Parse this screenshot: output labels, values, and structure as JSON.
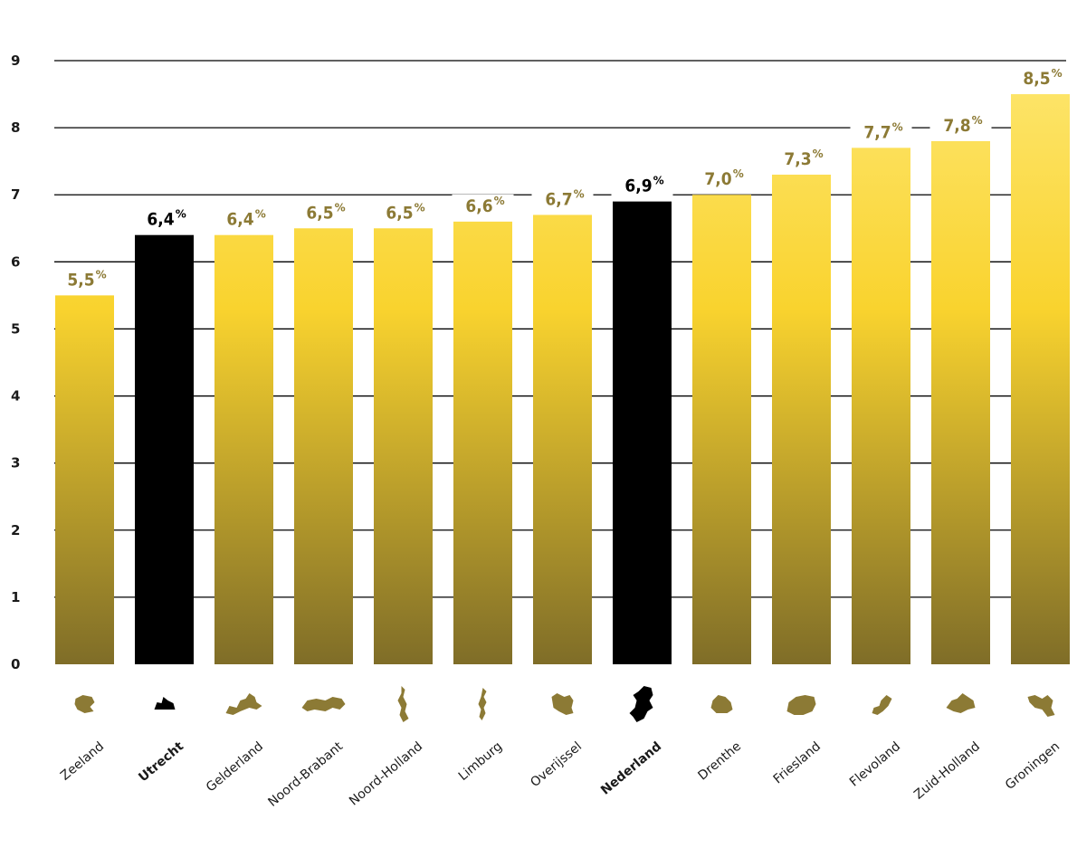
{
  "chart_data": {
    "type": "bar",
    "title": "",
    "xlabel": "",
    "ylabel": "",
    "ylim": [
      0,
      9
    ],
    "yticks": [
      "0",
      "1",
      "2",
      "3",
      "4",
      "5",
      "6",
      "7",
      "8",
      "9"
    ],
    "grid": true,
    "value_suffix": "%",
    "categories": [
      "Zeeland",
      "Utrecht",
      "Gelderland",
      "Noord-Brabant",
      "Noord-Holland",
      "Limburg",
      "Overijssel",
      "Nederland",
      "Drenthe",
      "Friesland",
      "Flevoland",
      "Zuid-Holland",
      "Groningen"
    ],
    "values": [
      5.5,
      6.4,
      6.4,
      6.5,
      6.5,
      6.6,
      6.7,
      6.9,
      7.0,
      7.3,
      7.7,
      7.8,
      8.5
    ],
    "value_labels": [
      "5,5",
      "6,4",
      "6,4",
      "6,5",
      "6,5",
      "6,6",
      "6,7",
      "6,9",
      "7,0",
      "7,3",
      "7,7",
      "7,8",
      "8,5"
    ],
    "highlighted": [
      "Utrecht",
      "Nederland"
    ],
    "colors": {
      "bar_top": "#FDE468",
      "bar_mid": "#F9D32E",
      "bar_bottom": "#7F6D28",
      "highlight": "#000000",
      "label": "#8C7A35",
      "label_highlight": "#000000",
      "grid": "#000000",
      "map_icon": "#8C7A35",
      "map_icon_highlight": "#000000"
    }
  }
}
